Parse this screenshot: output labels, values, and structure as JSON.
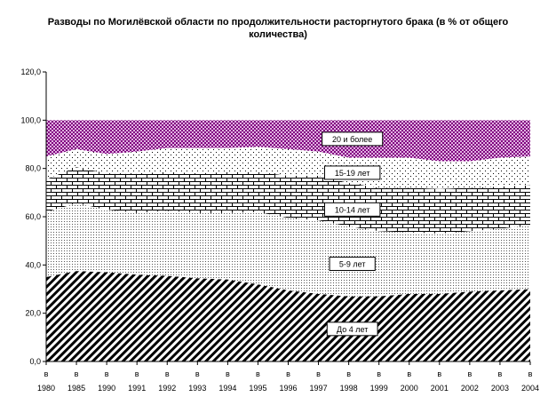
{
  "chart_data": {
    "type": "area",
    "stacked": true,
    "title": "Разводы по Могилёвской области по продолжительности расторгнутого брака (в % от общего количества)",
    "x": [
      "1980",
      "1985",
      "1990",
      "1991",
      "1992",
      "1993",
      "1994",
      "1995",
      "1996",
      "1997",
      "1998",
      "1999",
      "2000",
      "2001",
      "2002",
      "2003",
      "2004"
    ],
    "x_tick_prefix": "в",
    "ylim": [
      0,
      120
    ],
    "yticks": [
      "0,0",
      "20,0",
      "40,0",
      "60,0",
      "80,0",
      "100,0",
      "120,0"
    ],
    "grid": false,
    "series": [
      {
        "name": "До 4 лет",
        "values": [
          35,
          37.5,
          37,
          36,
          35.5,
          34.5,
          34,
          32,
          29.5,
          28,
          27,
          27,
          28,
          28,
          29,
          29.5,
          30
        ]
      },
      {
        "name": "5-9 лет",
        "values": [
          27,
          28,
          26,
          25.5,
          27,
          27,
          27.5,
          30,
          30,
          30.5,
          29,
          27,
          25.5,
          25,
          25,
          25.5,
          26.5
        ]
      },
      {
        "name": "10-14 лет",
        "values": [
          13.5,
          15,
          15,
          16.5,
          16,
          16.5,
          17,
          16.5,
          17.5,
          18.5,
          18,
          18,
          18.5,
          18.5,
          18,
          17.5,
          16.5
        ]
      },
      {
        "name": "15-19 лет",
        "values": [
          9.5,
          7.5,
          8,
          9,
          10,
          10.5,
          10,
          10.5,
          11,
          10,
          10.5,
          12.5,
          12.5,
          11.5,
          11,
          12,
          12
        ]
      },
      {
        "name": "20 и более",
        "values": [
          15,
          12,
          14,
          13,
          11.5,
          11.5,
          11.5,
          11,
          12,
          13,
          15.5,
          15.5,
          15.5,
          17,
          17,
          15.5,
          15
        ]
      }
    ]
  }
}
